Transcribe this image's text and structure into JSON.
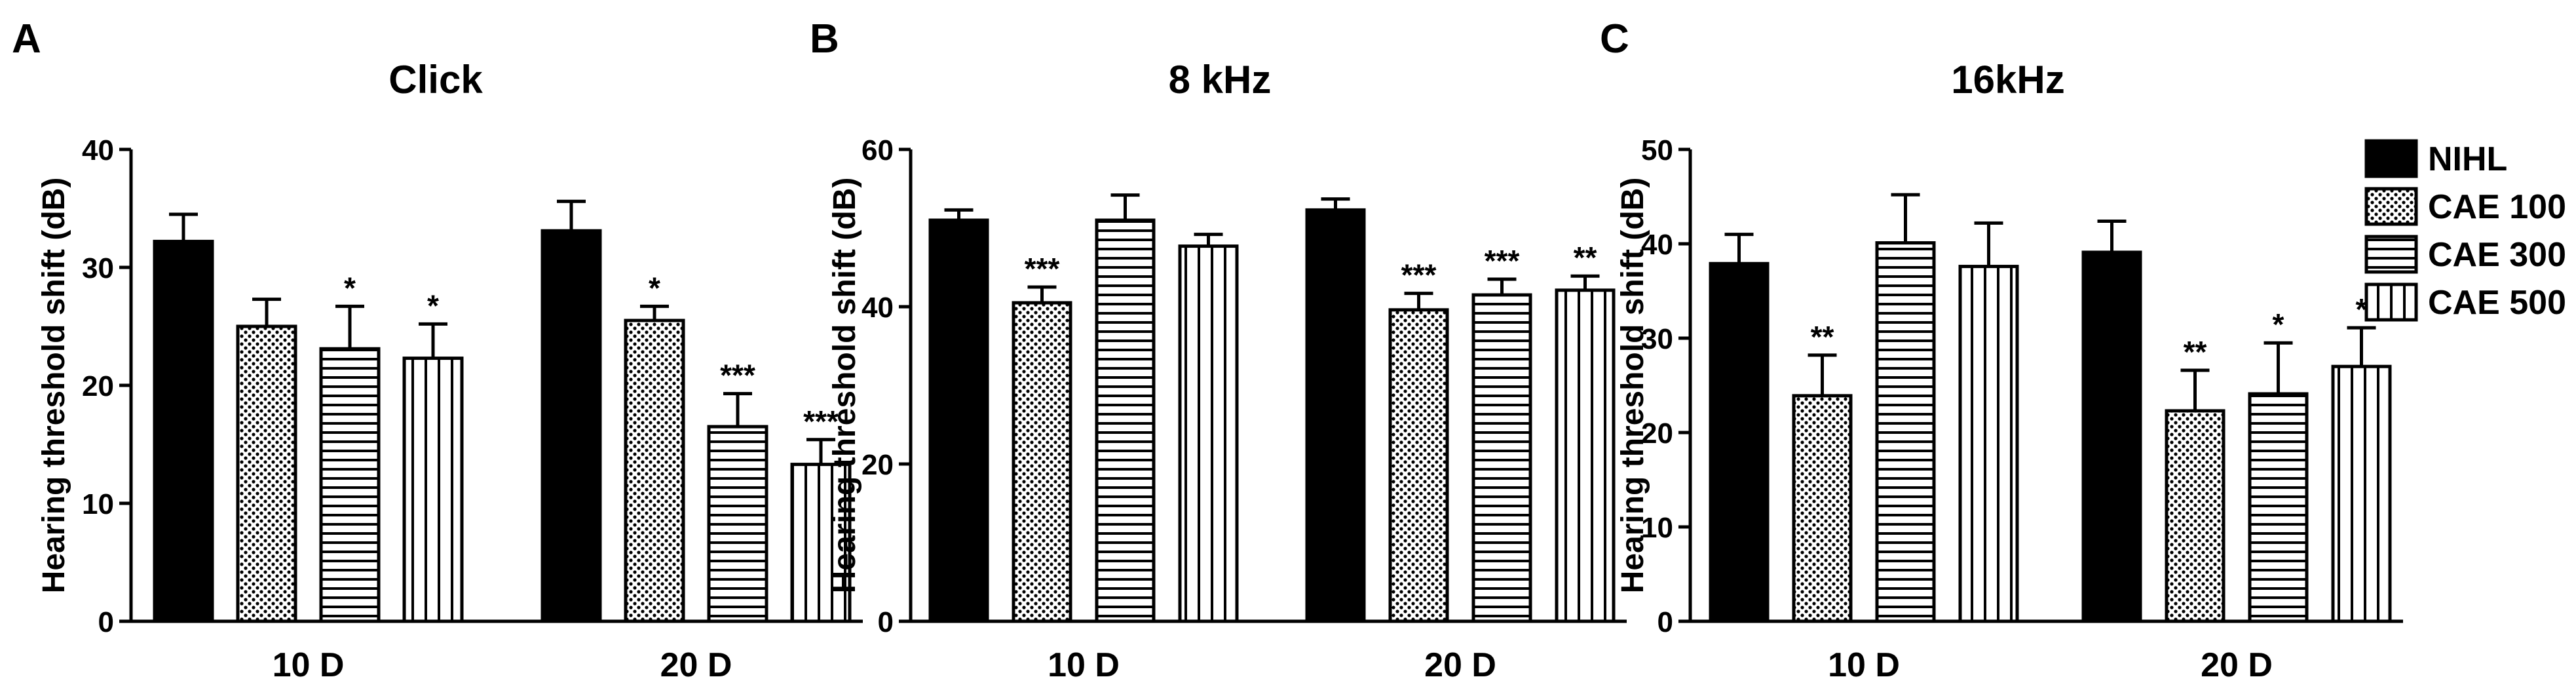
{
  "legend": {
    "entries": [
      {
        "label": "NIHL",
        "pattern": "solid"
      },
      {
        "label": "CAE 100",
        "pattern": "dots"
      },
      {
        "label": "CAE 300",
        "pattern": "hlines"
      },
      {
        "label": "CAE 500",
        "pattern": "vlines"
      }
    ]
  },
  "chart_data": [
    {
      "panel": "A",
      "type": "bar",
      "title": "Click",
      "ylabel": "Hearing threshold shift (dB)",
      "xlabel": "",
      "categories": [
        "10 D",
        "20 D"
      ],
      "ylim": [
        0,
        40
      ],
      "yticks": [
        0,
        10,
        20,
        30,
        40
      ],
      "series": [
        {
          "name": "NIHL",
          "values": [
            32.2,
            33.1
          ],
          "errors": [
            2.3,
            2.5
          ],
          "sig": [
            "",
            ""
          ]
        },
        {
          "name": "CAE 100",
          "values": [
            25.0,
            25.5
          ],
          "errors": [
            2.3,
            1.2
          ],
          "sig": [
            "",
            "*"
          ]
        },
        {
          "name": "CAE 300",
          "values": [
            23.1,
            16.5
          ],
          "errors": [
            3.6,
            2.8
          ],
          "sig": [
            "*",
            "***"
          ]
        },
        {
          "name": "CAE 500",
          "values": [
            22.3,
            13.3
          ],
          "errors": [
            2.9,
            2.1
          ],
          "sig": [
            "*",
            "***"
          ]
        }
      ]
    },
    {
      "panel": "B",
      "type": "bar",
      "title": "8 kHz",
      "ylabel": "Hearing threshold shift (dB)",
      "xlabel": "",
      "categories": [
        "10 D",
        "20 D"
      ],
      "ylim": [
        0,
        60
      ],
      "yticks": [
        0,
        20,
        40,
        60
      ],
      "series": [
        {
          "name": "NIHL",
          "values": [
            51.0,
            52.3
          ],
          "errors": [
            1.3,
            1.4
          ],
          "sig": [
            "",
            ""
          ]
        },
        {
          "name": "CAE 100",
          "values": [
            40.5,
            39.6
          ],
          "errors": [
            2.0,
            2.1
          ],
          "sig": [
            "***",
            "***"
          ]
        },
        {
          "name": "CAE 300",
          "values": [
            51.0,
            41.5
          ],
          "errors": [
            3.2,
            2.0
          ],
          "sig": [
            "",
            "***"
          ]
        },
        {
          "name": "CAE 500",
          "values": [
            47.7,
            42.1
          ],
          "errors": [
            1.5,
            1.8
          ],
          "sig": [
            "",
            "**"
          ]
        }
      ]
    },
    {
      "panel": "C",
      "type": "bar",
      "title": "16kHz",
      "ylabel": "Hearing threshold shift (dB)",
      "xlabel": "",
      "categories": [
        "10 D",
        "20 D"
      ],
      "ylim": [
        0,
        50
      ],
      "yticks": [
        0,
        10,
        20,
        30,
        40,
        50
      ],
      "series": [
        {
          "name": "NIHL",
          "values": [
            37.9,
            39.1
          ],
          "errors": [
            3.1,
            3.3
          ],
          "sig": [
            "",
            ""
          ]
        },
        {
          "name": "CAE 100",
          "values": [
            23.9,
            22.3
          ],
          "errors": [
            4.3,
            4.3
          ],
          "sig": [
            "**",
            "**"
          ]
        },
        {
          "name": "CAE 300",
          "values": [
            40.1,
            24.1
          ],
          "errors": [
            5.1,
            5.4
          ],
          "sig": [
            "",
            "*"
          ]
        },
        {
          "name": "CAE 500",
          "values": [
            37.6,
            27.0
          ],
          "errors": [
            4.6,
            4.1
          ],
          "sig": [
            "",
            "*"
          ]
        }
      ]
    }
  ]
}
